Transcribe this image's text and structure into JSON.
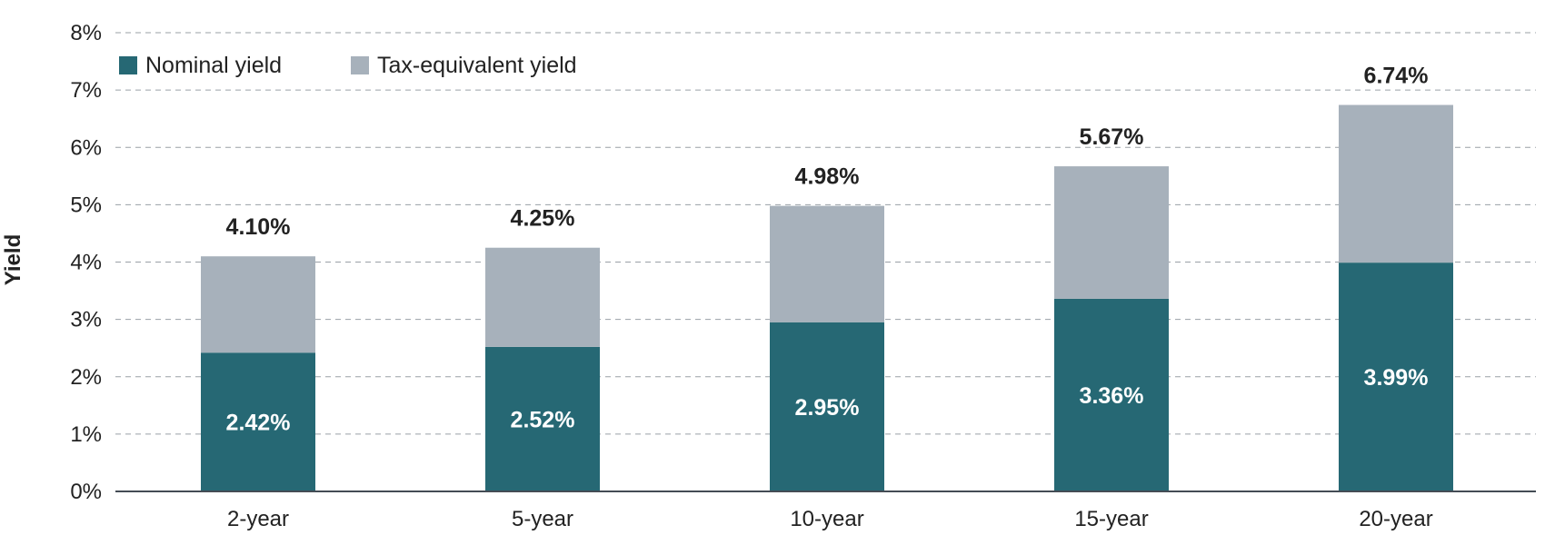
{
  "chart_data": {
    "type": "bar",
    "stacked": true,
    "categories": [
      "2-year",
      "5-year",
      "10-year",
      "15-year",
      "20-year"
    ],
    "series": [
      {
        "name": "Nominal yield",
        "values": [
          2.42,
          2.52,
          2.95,
          3.36,
          3.99
        ],
        "color": "#266874"
      },
      {
        "name": "Tax-equivalent yield",
        "values": [
          1.68,
          1.73,
          2.03,
          2.31,
          2.75
        ],
        "color": "#a7b1bb"
      }
    ],
    "nominal_labels": [
      "2.42%",
      "2.52%",
      "2.95%",
      "3.36%",
      "3.99%"
    ],
    "total_labels": [
      "4.10%",
      "4.25%",
      "4.98%",
      "5.67%",
      "6.74%"
    ],
    "ylabel": "Yield",
    "ylim": [
      0,
      8
    ],
    "yticks": [
      "0%",
      "1%",
      "2%",
      "3%",
      "4%",
      "5%",
      "6%",
      "7%",
      "8%"
    ],
    "grid": true,
    "legend_position": "top-left"
  },
  "colors": {
    "axis": "#444c55",
    "grid": "#9aa0a6"
  }
}
